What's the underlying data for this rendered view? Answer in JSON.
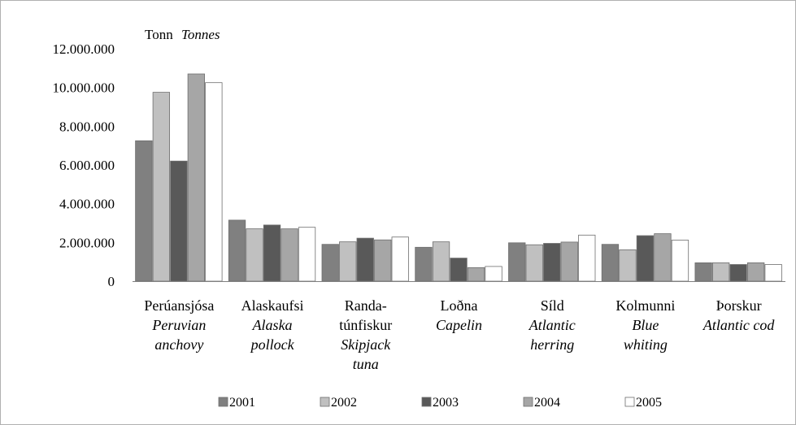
{
  "chart_data": {
    "type": "bar",
    "unit_label": {
      "main": "Tonn",
      "italic": "Tonnes"
    },
    "ylim": [
      0,
      12000000
    ],
    "y_ticks": [
      "0",
      "2.000.000",
      "4.000.000",
      "6.000.000",
      "8.000.000",
      "10.000.000",
      "12.000.000"
    ],
    "grid": false,
    "legend_position": "bottom",
    "categories": [
      {
        "main": [
          "Perúansjósa"
        ],
        "italic": [
          "Peruvian",
          "anchovy"
        ]
      },
      {
        "main": [
          "Alaskaufsi"
        ],
        "italic": [
          "Alaska",
          "pollock"
        ]
      },
      {
        "main": [
          "Randa-",
          "túnfiskur"
        ],
        "italic": [
          "Skipjack",
          "tuna"
        ]
      },
      {
        "main": [
          "Loðna"
        ],
        "italic": [
          "Capelin"
        ]
      },
      {
        "main": [
          "Síld"
        ],
        "italic": [
          "Atlantic",
          "herring"
        ]
      },
      {
        "main": [
          "Kolmunni"
        ],
        "italic": [
          "Blue",
          "whiting"
        ]
      },
      {
        "main": [
          "Þorskur"
        ],
        "italic": [
          "Atlantic cod"
        ]
      }
    ],
    "series": [
      {
        "name": "2001",
        "color": "#808080",
        "values": [
          7250000,
          3150000,
          1900000,
          1750000,
          1980000,
          1900000,
          950000
        ]
      },
      {
        "name": "2002",
        "color": "#c0c0c0",
        "values": [
          9750000,
          2700000,
          2030000,
          2030000,
          1880000,
          1620000,
          950000
        ]
      },
      {
        "name": "2003",
        "color": "#595959",
        "values": [
          6200000,
          2900000,
          2220000,
          1190000,
          1950000,
          2350000,
          860000
        ]
      },
      {
        "name": "2004",
        "color": "#a6a6a6",
        "values": [
          10700000,
          2700000,
          2130000,
          700000,
          2020000,
          2450000,
          950000
        ]
      },
      {
        "name": "2005",
        "color": "#ffffff",
        "values": [
          10250000,
          2780000,
          2280000,
          760000,
          2380000,
          2120000,
          860000
        ]
      }
    ]
  }
}
